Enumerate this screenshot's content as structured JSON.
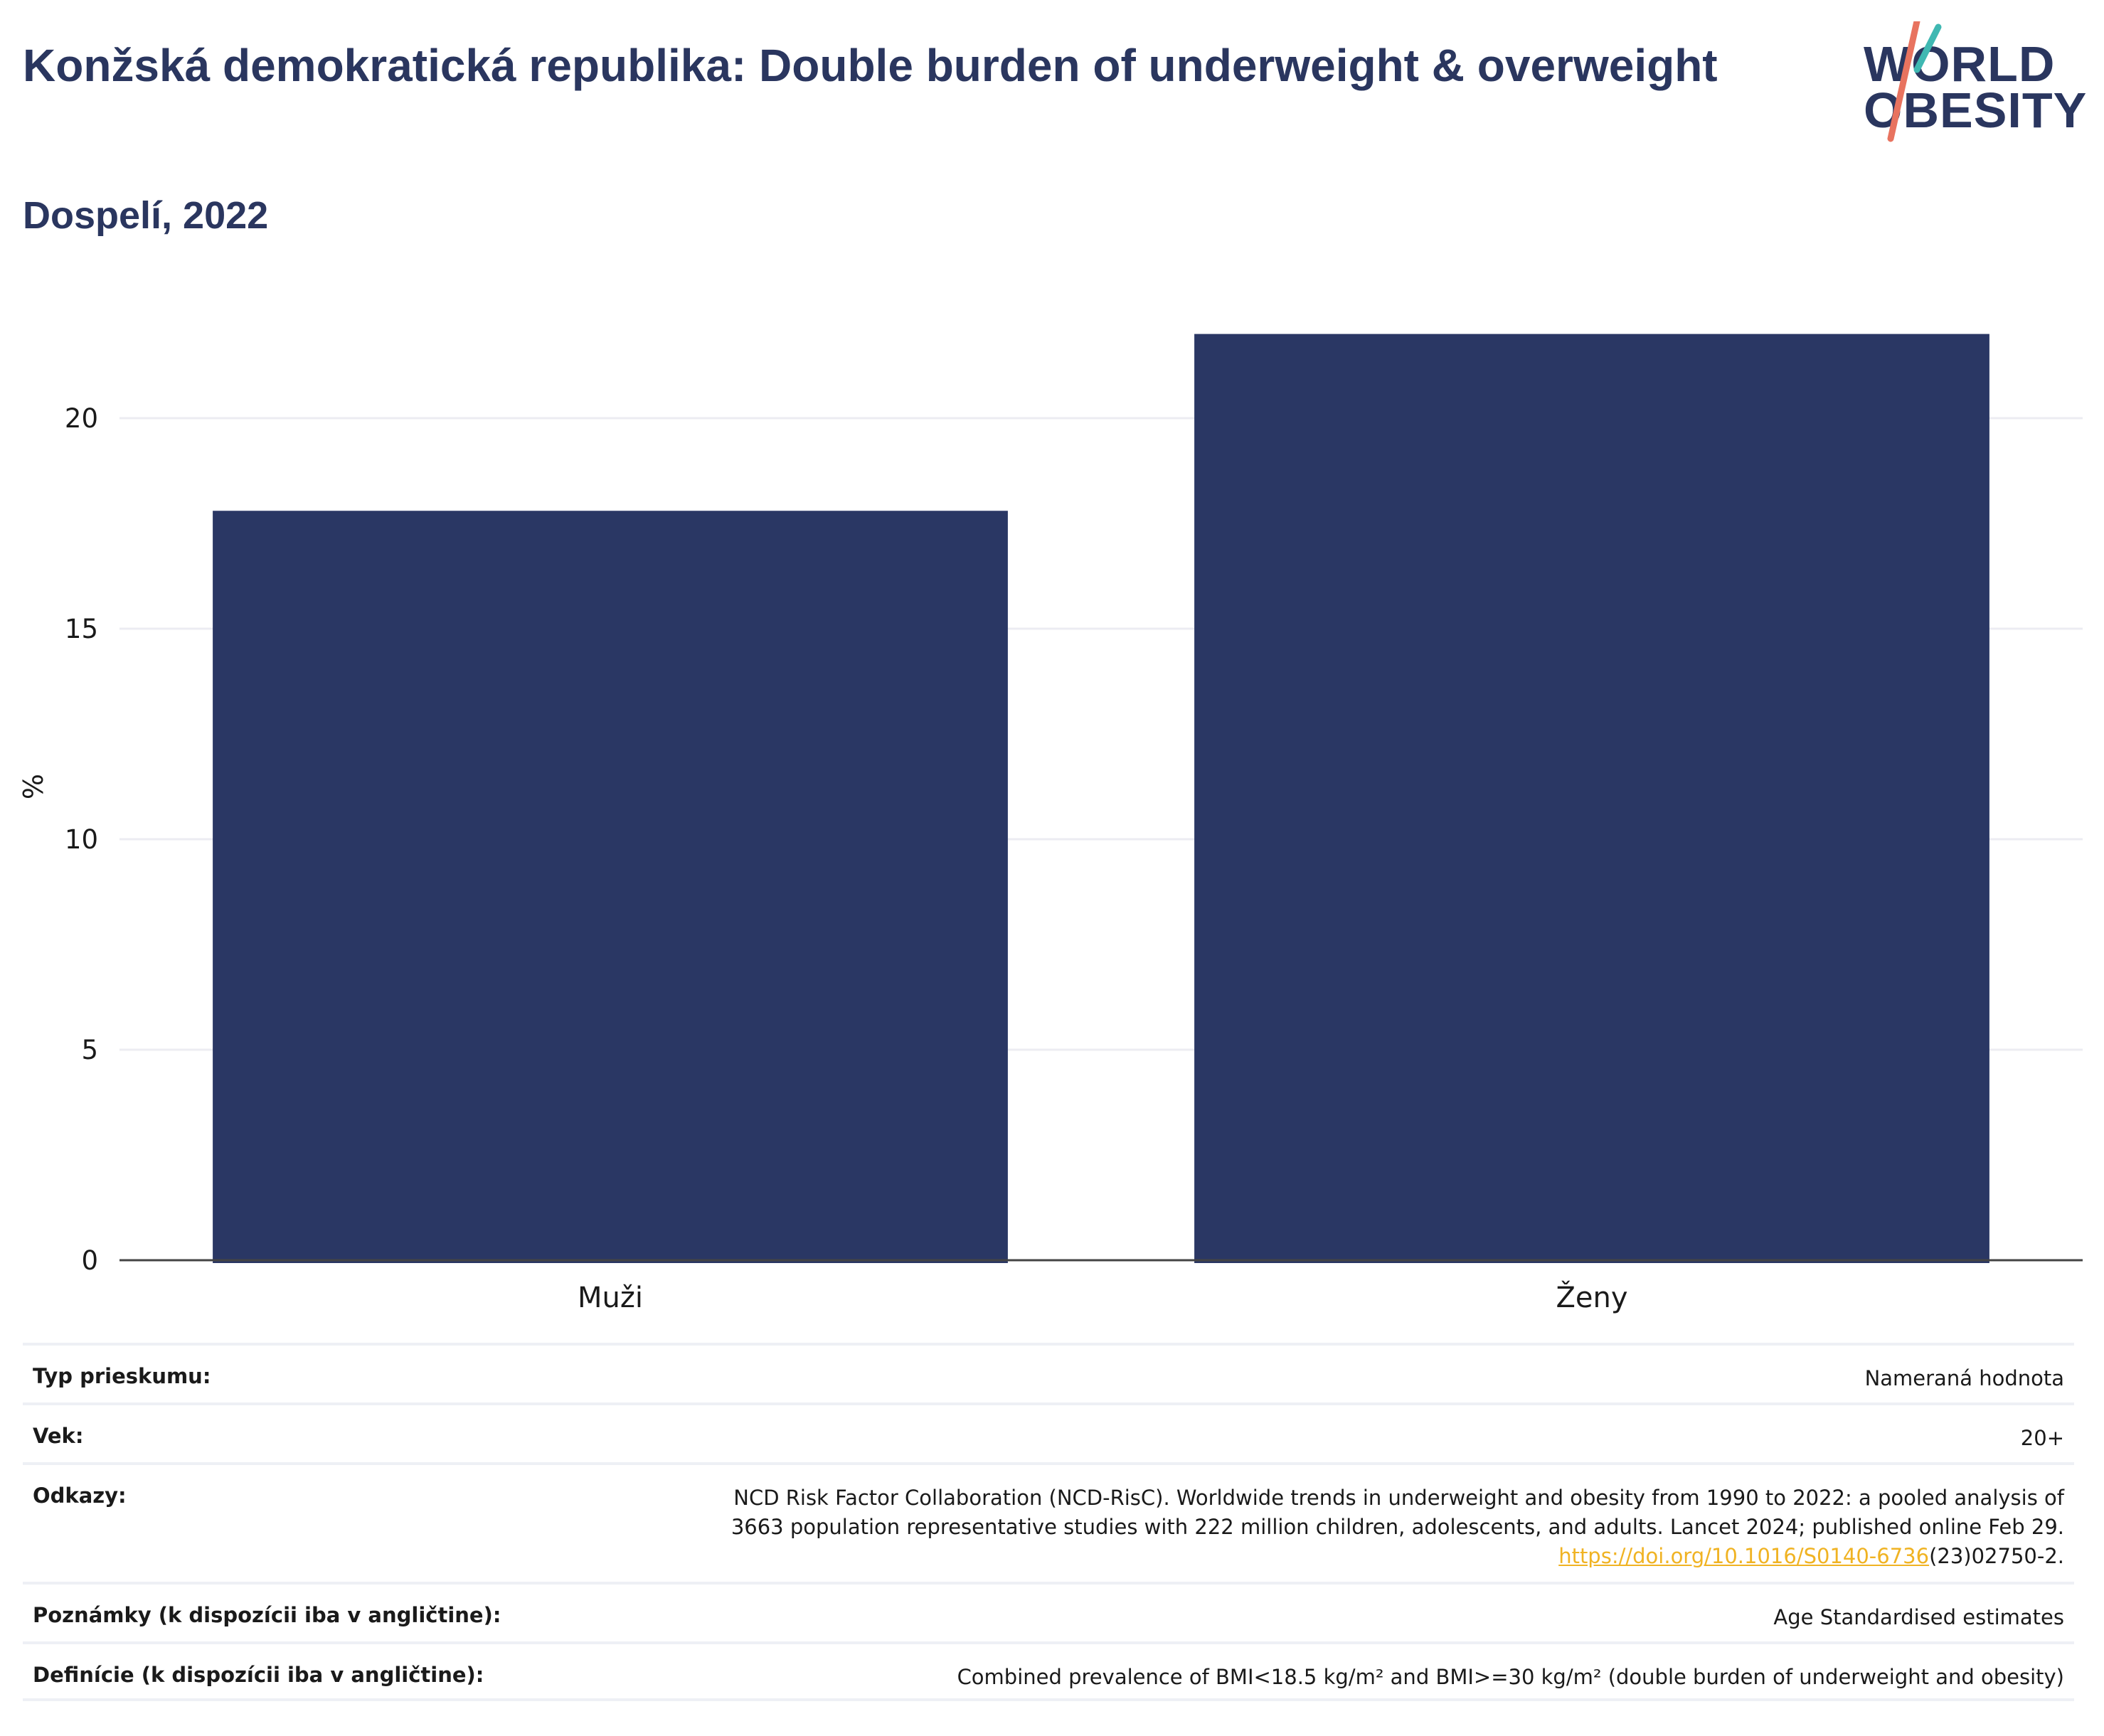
{
  "header": {
    "title": "Konžská demokratická republika: Double burden of underweight & overweight",
    "subtitle": "Dospelí, 2022"
  },
  "logo": {
    "line1": "WORLD",
    "line2": "OBESITY",
    "accent_teal": "#3fb8b2",
    "accent_coral": "#e8735f"
  },
  "colors": {
    "bar": "#2a3764",
    "grid": "#ececf2",
    "axis": "#444444",
    "link": "#f0b323"
  },
  "chart_data": {
    "type": "bar",
    "categories": [
      "Muži",
      "Ženy"
    ],
    "values": [
      17.8,
      22.0
    ],
    "title": "",
    "xlabel": "",
    "ylabel": "%",
    "ylim": [
      0,
      22.5
    ],
    "yticks": [
      0,
      5,
      10,
      15,
      20
    ],
    "grid": true,
    "legend": "none"
  },
  "info_table": {
    "survey_type": {
      "label": "Typ prieskumu:",
      "value": "Nameraná hodnota"
    },
    "age": {
      "label": "Vek:",
      "value": "20+"
    },
    "references": {
      "label": "Odkazy:",
      "line1": "NCD Risk Factor Collaboration (NCD-RisC). Worldwide trends in underweight and obesity from 1990 to 2022: a pooled analysis of",
      "line2": "3663 population representative studies with 222 million children, adolescents, and adults. Lancet 2024; published online Feb 29.",
      "link_text": "https://doi.org/10.1016/S0140-6736",
      "link_suffix": "(23)02750-2."
    },
    "notes": {
      "label": "Poznámky (k dispozícii iba v angličtine):",
      "value": "Age Standardised estimates"
    },
    "definitions": {
      "label": "Definície (k dispozícii iba v angličtine):",
      "value": "Combined prevalence of BMI<18.5 kg/m² and BMI>=30 kg/m² (double burden of underweight and obesity)"
    }
  }
}
